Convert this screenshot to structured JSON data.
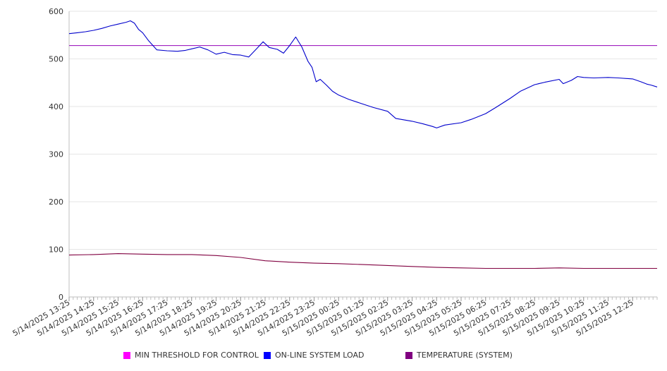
{
  "chart_data": {
    "type": "line",
    "title": "",
    "xlabel": "",
    "ylabel": "",
    "ylim": [
      0,
      600
    ],
    "yticks": [
      0,
      100,
      200,
      300,
      400,
      500,
      600
    ],
    "grid": true,
    "legend_position": "bottom",
    "x_tick_labels": [
      "5/14/2025 13:25",
      "5/14/2025 14:25",
      "5/14/2025 15:25",
      "5/14/2025 16:25",
      "5/14/2025 17:25",
      "5/14/2025 18:25",
      "5/14/2025 19:25",
      "5/14/2025 20:25",
      "5/14/2025 21:25",
      "5/14/2025 22:25",
      "5/14/2025 23:25",
      "5/15/2025 00:25",
      "5/15/2025 01:25",
      "5/15/2025 02:25",
      "5/15/2025 03:25",
      "5/15/2025 04:25",
      "5/15/2025 05:25",
      "5/15/2025 06:25",
      "5/15/2025 07:25",
      "5/15/2025 08:25",
      "5/15/2025 09:25",
      "5/15/2025 10:25",
      "5/15/2025 11:25",
      "5/15/2025 12:25"
    ],
    "series": [
      {
        "name": "MIN THRESHOLD FOR CONTROL",
        "color": "#a020c0",
        "legend_color": "#ff00ff",
        "points": [
          [
            "5/14/2025 13:25",
            528
          ],
          [
            "5/15/2025 13:25",
            528
          ]
        ]
      },
      {
        "name": "ON-LINE SYSTEM LOAD",
        "color": "#0000cc",
        "legend_color": "#0000ff",
        "points": [
          [
            "5/14/2025 13:25",
            553
          ],
          [
            "5/14/2025 13:45",
            555
          ],
          [
            "5/14/2025 14:05",
            557
          ],
          [
            "5/14/2025 14:25",
            560
          ],
          [
            "5/14/2025 14:45",
            564
          ],
          [
            "5/14/2025 15:05",
            569
          ],
          [
            "5/14/2025 15:25",
            573
          ],
          [
            "5/14/2025 15:45",
            577
          ],
          [
            "5/14/2025 15:55",
            580
          ],
          [
            "5/14/2025 16:05",
            575
          ],
          [
            "5/14/2025 16:15",
            562
          ],
          [
            "5/14/2025 16:25",
            555
          ],
          [
            "5/14/2025 16:40",
            538
          ],
          [
            "5/14/2025 17:00",
            519
          ],
          [
            "5/14/2025 17:25",
            517
          ],
          [
            "5/14/2025 17:50",
            516
          ],
          [
            "5/14/2025 18:10",
            518
          ],
          [
            "5/14/2025 18:25",
            521
          ],
          [
            "5/14/2025 18:45",
            525
          ],
          [
            "5/14/2025 19:05",
            519
          ],
          [
            "5/14/2025 19:25",
            510
          ],
          [
            "5/14/2025 19:45",
            514
          ],
          [
            "5/14/2025 20:05",
            509
          ],
          [
            "5/14/2025 20:25",
            508
          ],
          [
            "5/14/2025 20:45",
            504
          ],
          [
            "5/14/2025 21:05",
            522
          ],
          [
            "5/14/2025 21:20",
            536
          ],
          [
            "5/14/2025 21:35",
            524
          ],
          [
            "5/14/2025 21:55",
            520
          ],
          [
            "5/14/2025 22:10",
            512
          ],
          [
            "5/14/2025 22:25",
            528
          ],
          [
            "5/14/2025 22:40",
            546
          ],
          [
            "5/14/2025 22:55",
            525
          ],
          [
            "5/14/2025 23:10",
            495
          ],
          [
            "5/14/2025 23:20",
            482
          ],
          [
            "5/14/2025 23:30",
            452
          ],
          [
            "5/14/2025 23:40",
            457
          ],
          [
            "5/14/2025 23:55",
            445
          ],
          [
            "5/15/2025 00:10",
            432
          ],
          [
            "5/15/2025 00:25",
            424
          ],
          [
            "5/15/2025 00:50",
            415
          ],
          [
            "5/15/2025 01:25",
            405
          ],
          [
            "5/15/2025 01:50",
            398
          ],
          [
            "5/15/2025 02:25",
            390
          ],
          [
            "5/15/2025 02:45",
            375
          ],
          [
            "5/15/2025 03:25",
            369
          ],
          [
            "5/15/2025 03:50",
            364
          ],
          [
            "5/15/2025 04:15",
            358
          ],
          [
            "5/15/2025 04:25",
            355
          ],
          [
            "5/15/2025 04:45",
            361
          ],
          [
            "5/15/2025 05:25",
            366
          ],
          [
            "5/15/2025 05:50",
            373
          ],
          [
            "5/15/2025 06:25",
            385
          ],
          [
            "5/15/2025 06:50",
            398
          ],
          [
            "5/15/2025 07:25",
            417
          ],
          [
            "5/15/2025 07:50",
            432
          ],
          [
            "5/15/2025 08:25",
            446
          ],
          [
            "5/15/2025 08:50",
            451
          ],
          [
            "5/15/2025 09:25",
            457
          ],
          [
            "5/15/2025 09:35",
            448
          ],
          [
            "5/15/2025 09:55",
            455
          ],
          [
            "5/15/2025 10:10",
            463
          ],
          [
            "5/15/2025 10:25",
            461
          ],
          [
            "5/15/2025 10:50",
            460
          ],
          [
            "5/15/2025 11:25",
            461
          ],
          [
            "5/15/2025 11:50",
            460
          ],
          [
            "5/15/2025 12:25",
            458
          ],
          [
            "5/15/2025 12:45",
            452
          ],
          [
            "5/15/2025 13:00",
            447
          ],
          [
            "5/15/2025 13:10",
            445
          ],
          [
            "5/15/2025 13:25",
            441
          ]
        ]
      },
      {
        "name": "TEMPERATURE (SYSTEM)",
        "color": "#800040",
        "legend_color": "#800080",
        "points": [
          [
            "5/14/2025 13:25",
            88
          ],
          [
            "5/14/2025 14:25",
            89
          ],
          [
            "5/14/2025 15:25",
            91
          ],
          [
            "5/14/2025 16:25",
            90
          ],
          [
            "5/14/2025 17:25",
            89
          ],
          [
            "5/14/2025 18:25",
            89
          ],
          [
            "5/14/2025 19:25",
            87
          ],
          [
            "5/14/2025 20:25",
            83
          ],
          [
            "5/14/2025 21:25",
            76
          ],
          [
            "5/14/2025 22:25",
            73
          ],
          [
            "5/14/2025 23:25",
            71
          ],
          [
            "5/15/2025 00:25",
            70
          ],
          [
            "5/15/2025 01:25",
            68
          ],
          [
            "5/15/2025 02:25",
            66
          ],
          [
            "5/15/2025 03:25",
            64
          ],
          [
            "5/15/2025 04:25",
            62
          ],
          [
            "5/15/2025 05:25",
            61
          ],
          [
            "5/15/2025 06:25",
            60
          ],
          [
            "5/15/2025 07:25",
            60
          ],
          [
            "5/15/2025 08:25",
            60
          ],
          [
            "5/15/2025 09:25",
            61
          ],
          [
            "5/15/2025 10:25",
            60
          ],
          [
            "5/15/2025 11:25",
            60
          ],
          [
            "5/15/2025 12:25",
            60
          ],
          [
            "5/15/2025 13:25",
            60
          ]
        ]
      }
    ]
  }
}
